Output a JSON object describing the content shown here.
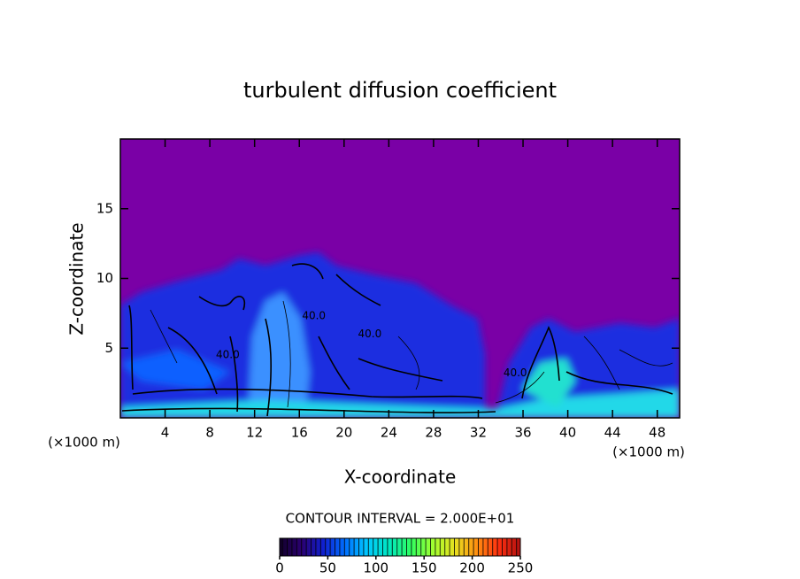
{
  "chart_data": {
    "type": "heatmap",
    "title": "turbulent diffusion coefficient",
    "x_label": "X-coordinate",
    "y_label": "Z-coordinate",
    "x_unit": "(×1000 m)",
    "y_unit": "(×1000 m)",
    "xlim": [
      0,
      50
    ],
    "xticks": [
      4,
      8,
      12,
      16,
      20,
      24,
      28,
      32,
      36,
      40,
      44,
      48
    ],
    "ylim": [
      0,
      20
    ],
    "yticks": [
      5,
      10,
      15
    ],
    "contour_interval": "CONTOUR INTERVAL = 2.000E+01",
    "annotations": [
      {
        "text": "40.0",
        "x": 17.3,
        "y": 7.3
      },
      {
        "text": "40.0",
        "x": 22.3,
        "y": 6.0
      },
      {
        "text": "40.0",
        "x": 9.6,
        "y": 4.5
      },
      {
        "text": "40.0",
        "x": 35.3,
        "y": 3.2
      }
    ],
    "colorbar": {
      "lim": [
        0,
        250
      ],
      "ticks": [
        0,
        50,
        100,
        150,
        200,
        250
      ],
      "colors": [
        "#12002a",
        "#2a0070",
        "#1020d0",
        "#0070ff",
        "#00c8ff",
        "#00e8c0",
        "#30ff60",
        "#a0ff30",
        "#e8e020",
        "#ff9010",
        "#ff3010",
        "#b01010"
      ]
    }
  }
}
